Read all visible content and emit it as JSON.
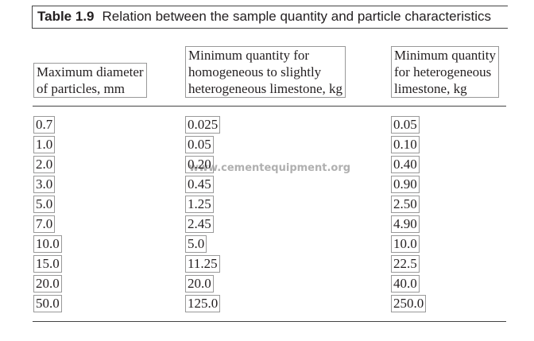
{
  "table": {
    "title_label": "Table 1.9",
    "title": "Relation between the sample quantity and particle characteristics",
    "headers": [
      [
        "Maximum diameter",
        "of particles, mm"
      ],
      [
        "Minimum quantity for",
        "homogeneous to slightly",
        "heterogeneous limestone, kg"
      ],
      [
        "Minimum quantity",
        "for heterogeneous",
        "limestone, kg"
      ]
    ],
    "rows": [
      [
        "0.7",
        "0.025",
        "0.05"
      ],
      [
        "1.0",
        "0.05",
        "0.10"
      ],
      [
        "2.0",
        "0.20",
        "0.40"
      ],
      [
        "3.0",
        "0.45",
        "0.90"
      ],
      [
        "5.0",
        "1.25",
        "2.50"
      ],
      [
        "7.0",
        "2.45",
        "4.90"
      ],
      [
        "10.0",
        "5.0",
        "10.0"
      ],
      [
        "15.0",
        "11.25",
        "22.5"
      ],
      [
        "20.0",
        "20.0",
        "40.0"
      ],
      [
        "50.0",
        "125.0",
        "250.0"
      ]
    ]
  },
  "watermark": "www.cementequipment.org"
}
